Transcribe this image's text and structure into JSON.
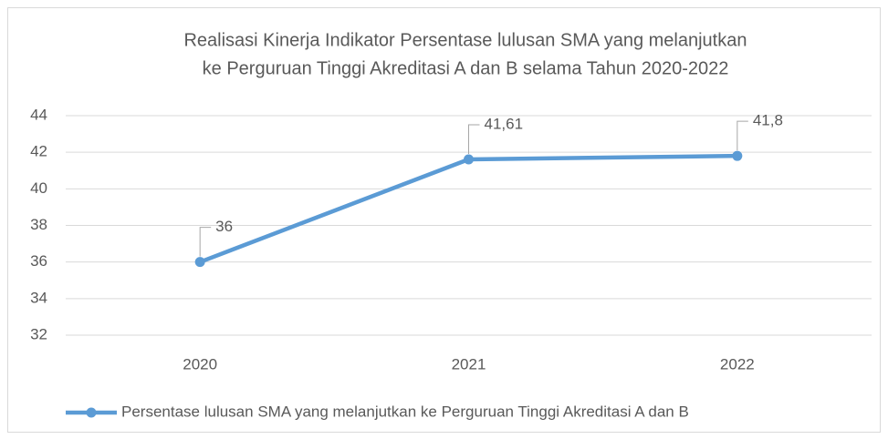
{
  "chart_data": {
    "type": "line",
    "title": [
      "Realisasi Kinerja Indikator Persentase lulusan SMA yang melanjutkan",
      "ke Perguruan Tinggi Akreditasi A dan B selama Tahun 2020-2022"
    ],
    "categories": [
      "2020",
      "2021",
      "2022"
    ],
    "series": [
      {
        "name": "Persentase lulusan SMA yang melanjutkan ke Perguruan Tinggi Akreditasi A dan B",
        "color": "#5b9bd5",
        "values": [
          36,
          41.61,
          41.8
        ],
        "value_labels": [
          "36",
          "41,61",
          "41,8"
        ]
      }
    ],
    "ylim": [
      32,
      44
    ],
    "yticks": [
      32,
      34,
      36,
      38,
      40,
      42,
      44
    ],
    "grid": true,
    "legend": "bottom"
  }
}
